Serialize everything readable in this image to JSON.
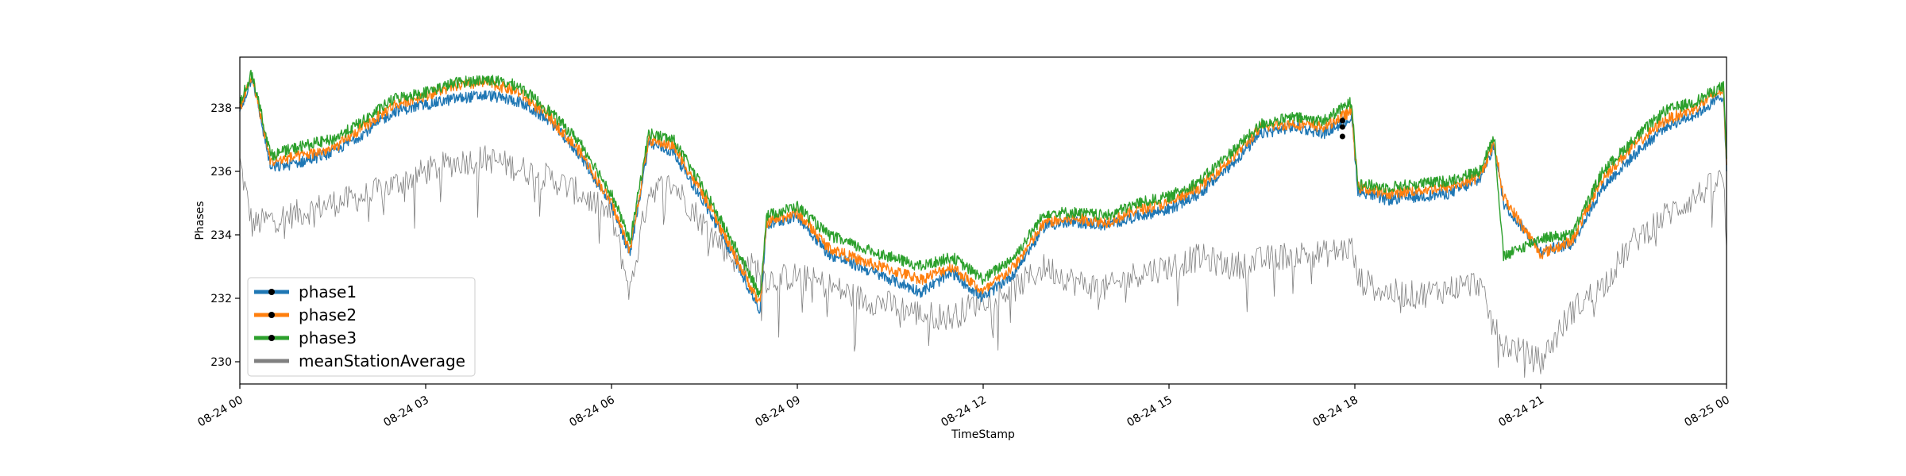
{
  "chart_data": {
    "type": "line",
    "title": "",
    "xlabel": "TimeStamp",
    "ylabel": "Phases",
    "x_ticks": [
      "08-24 00",
      "08-24 03",
      "08-24 06",
      "08-24 09",
      "08-24 12",
      "08-24 15",
      "08-24 18",
      "08-24 21",
      "08-25 00"
    ],
    "y_ticks": [
      230,
      232,
      234,
      236,
      238
    ],
    "xlim_hours": [
      0,
      24
    ],
    "ylim": [
      229.3,
      239.6
    ],
    "legend": {
      "position": "lower-left"
    },
    "grid": false,
    "x_hours": [
      0,
      0.2,
      0.5,
      1,
      1.5,
      2,
      2.5,
      3,
      3.5,
      4,
      4.5,
      5,
      5.5,
      6,
      6.3,
      6.6,
      7,
      7.5,
      8,
      8.4,
      8.5,
      9,
      9.5,
      10,
      10.5,
      11,
      11.5,
      12,
      12.5,
      13,
      13.5,
      14,
      14.5,
      15,
      15.5,
      16,
      16.5,
      17,
      17.5,
      17.95,
      18.05,
      18.5,
      19,
      19.5,
      20,
      20.25,
      20.4,
      21,
      21.5,
      22,
      22.5,
      23,
      23.5,
      23.95,
      24
    ],
    "series": [
      {
        "name": "phase1",
        "color": "#1f77b4",
        "values": [
          237.9,
          239.0,
          236.1,
          236.3,
          236.6,
          237.2,
          237.9,
          238.1,
          238.3,
          238.4,
          238.2,
          237.6,
          236.5,
          234.9,
          233.4,
          236.9,
          236.6,
          235.0,
          233.2,
          231.6,
          234.3,
          234.6,
          233.4,
          233.0,
          232.6,
          232.2,
          232.8,
          232.0,
          232.8,
          234.3,
          234.4,
          234.3,
          234.6,
          234.8,
          235.3,
          236.2,
          237.2,
          237.4,
          237.2,
          237.7,
          235.4,
          235.1,
          235.2,
          235.3,
          235.7,
          236.8,
          235.0,
          233.5,
          233.7,
          235.5,
          236.5,
          237.4,
          237.8,
          238.4,
          236.0
        ]
      },
      {
        "name": "phase2",
        "color": "#ff7f0e",
        "values": [
          238.0,
          239.0,
          236.3,
          236.5,
          236.7,
          237.4,
          238.1,
          238.4,
          238.7,
          238.8,
          238.5,
          237.7,
          236.6,
          235.0,
          233.5,
          237.0,
          236.8,
          235.2,
          233.3,
          231.8,
          234.4,
          234.7,
          233.6,
          233.2,
          232.9,
          232.6,
          233.0,
          232.2,
          233.0,
          234.4,
          234.5,
          234.4,
          234.8,
          235.0,
          235.5,
          236.4,
          237.4,
          237.5,
          237.4,
          237.9,
          235.5,
          235.3,
          235.4,
          235.5,
          235.8,
          236.9,
          235.2,
          233.4,
          233.8,
          235.8,
          236.8,
          237.6,
          238.0,
          238.6,
          236.2
        ]
      },
      {
        "name": "phase3",
        "color": "#2ca02c",
        "values": [
          238.2,
          239.1,
          236.5,
          236.8,
          237.0,
          237.6,
          238.3,
          238.5,
          238.8,
          238.9,
          238.7,
          237.9,
          236.9,
          235.3,
          233.8,
          237.2,
          237.0,
          235.4,
          233.6,
          232.1,
          234.6,
          234.9,
          234.0,
          233.6,
          233.3,
          233.0,
          233.3,
          232.6,
          233.3,
          234.7,
          234.7,
          234.6,
          235.0,
          235.2,
          235.7,
          236.6,
          237.5,
          237.7,
          237.6,
          238.2,
          235.6,
          235.5,
          235.6,
          235.7,
          236.0,
          237.1,
          233.3,
          233.9,
          234.0,
          236.0,
          237.0,
          237.9,
          238.2,
          238.7,
          236.4
        ]
      },
      {
        "name": "meanStationAverage",
        "color": "#808080",
        "values": [
          236.3,
          234.3,
          234.5,
          234.7,
          235.0,
          235.2,
          235.6,
          236.0,
          236.3,
          236.4,
          236.1,
          235.8,
          235.3,
          234.6,
          232.2,
          235.4,
          235.6,
          234.3,
          233.2,
          232.9,
          232.6,
          232.7,
          232.4,
          232.0,
          231.8,
          231.5,
          231.4,
          232.0,
          232.3,
          233.0,
          232.5,
          232.3,
          232.8,
          233.0,
          233.3,
          233.0,
          233.2,
          233.4,
          233.4,
          233.6,
          232.6,
          232.2,
          232.1,
          232.3,
          232.5,
          231.0,
          230.6,
          230.0,
          231.6,
          232.4,
          233.8,
          234.6,
          235.2,
          235.8,
          233.6
        ]
      }
    ],
    "markers": {
      "x_hour": 17.8,
      "values": [
        237.1,
        237.4,
        237.6
      ],
      "color": "#000000"
    }
  }
}
